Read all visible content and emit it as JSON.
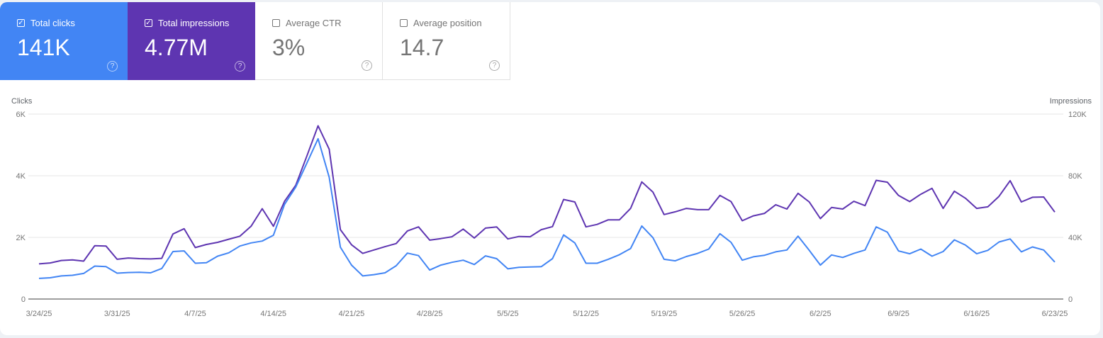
{
  "metrics": [
    {
      "label": "Total clicks",
      "value": "141K",
      "checked": true,
      "color": "#4285f4"
    },
    {
      "label": "Total impressions",
      "value": "4.77M",
      "checked": true,
      "color": "#5e35b1"
    },
    {
      "label": "Average CTR",
      "value": "3%",
      "checked": false
    },
    {
      "label": "Average position",
      "value": "14.7",
      "checked": false
    }
  ],
  "icons": {
    "checkbox": "checkbox-icon",
    "help": "help-circle-icon"
  },
  "chart_data": {
    "type": "line",
    "grid": true,
    "legend": "none",
    "left_axis": {
      "label": "Clicks",
      "range": [
        0,
        6000
      ],
      "ticks": [
        "0",
        "2K",
        "4K",
        "6K"
      ]
    },
    "right_axis": {
      "label": "Impressions",
      "range": [
        0,
        120000
      ],
      "ticks": [
        "0",
        "40K",
        "80K",
        "120K"
      ]
    },
    "x_ticks": [
      "3/24/25",
      "3/31/25",
      "4/7/25",
      "4/14/25",
      "4/21/25",
      "4/28/25",
      "5/5/25",
      "5/12/25",
      "5/19/25",
      "5/26/25",
      "6/2/25",
      "6/9/25",
      "6/16/25",
      "6/23/25"
    ],
    "dates": [
      "3/24/25",
      "3/25/25",
      "3/26/25",
      "3/27/25",
      "3/28/25",
      "3/29/25",
      "3/30/25",
      "3/31/25",
      "4/1/25",
      "4/2/25",
      "4/3/25",
      "4/4/25",
      "4/5/25",
      "4/6/25",
      "4/7/25",
      "4/8/25",
      "4/9/25",
      "4/10/25",
      "4/11/25",
      "4/12/25",
      "4/13/25",
      "4/14/25",
      "4/15/25",
      "4/16/25",
      "4/17/25",
      "4/18/25",
      "4/19/25",
      "4/20/25",
      "4/21/25",
      "4/22/25",
      "4/23/25",
      "4/24/25",
      "4/25/25",
      "4/26/25",
      "4/27/25",
      "4/28/25",
      "4/29/25",
      "4/30/25",
      "5/1/25",
      "5/2/25",
      "5/3/25",
      "5/4/25",
      "5/5/25",
      "5/6/25",
      "5/7/25",
      "5/8/25",
      "5/9/25",
      "5/10/25",
      "5/11/25",
      "5/12/25",
      "5/13/25",
      "5/14/25",
      "5/15/25",
      "5/16/25",
      "5/17/25",
      "5/18/25",
      "5/19/25",
      "5/20/25",
      "5/21/25",
      "5/22/25",
      "5/23/25",
      "5/24/25",
      "5/25/25",
      "5/26/25",
      "5/27/25",
      "5/28/25",
      "5/29/25",
      "5/30/25",
      "5/31/25",
      "6/1/25",
      "6/2/25",
      "6/3/25",
      "6/4/25",
      "6/5/25",
      "6/6/25",
      "6/7/25",
      "6/8/25",
      "6/9/25",
      "6/10/25",
      "6/11/25",
      "6/12/25",
      "6/13/25",
      "6/14/25",
      "6/15/25",
      "6/16/25",
      "6/17/25",
      "6/18/25",
      "6/19/25",
      "6/20/25",
      "6/21/25",
      "6/22/25",
      "6/23/25"
    ],
    "series": [
      {
        "name": "Clicks",
        "axis": "left",
        "color": "#4285f4",
        "values": [
          670,
          690,
          750,
          770,
          830,
          1070,
          1050,
          840,
          860,
          870,
          850,
          990,
          1540,
          1560,
          1160,
          1180,
          1390,
          1500,
          1720,
          1820,
          1880,
          2070,
          3070,
          3630,
          4410,
          5200,
          3950,
          1680,
          1100,
          750,
          790,
          850,
          1080,
          1490,
          1410,
          940,
          1100,
          1190,
          1260,
          1120,
          1400,
          1310,
          980,
          1030,
          1040,
          1050,
          1310,
          2080,
          1820,
          1160,
          1160,
          1290,
          1440,
          1640,
          2370,
          1990,
          1290,
          1240,
          1380,
          1480,
          1620,
          2120,
          1840,
          1260,
          1370,
          1420,
          1530,
          1590,
          2040,
          1580,
          1100,
          1430,
          1350,
          1480,
          1590,
          2340,
          2170,
          1560,
          1470,
          1620,
          1390,
          1540,
          1920,
          1750,
          1470,
          1580,
          1850,
          1950,
          1530,
          1690,
          1590,
          1200
        ]
      },
      {
        "name": "Impressions",
        "axis": "right",
        "color": "#5e35b1",
        "values": [
          22800,
          23400,
          25000,
          25400,
          24600,
          34600,
          34400,
          25800,
          26600,
          26200,
          26000,
          26400,
          42200,
          45600,
          33400,
          35400,
          36800,
          38800,
          40800,
          47200,
          58600,
          47200,
          63400,
          73800,
          92800,
          112400,
          97200,
          45000,
          35200,
          29600,
          31800,
          34000,
          36000,
          44200,
          46800,
          38200,
          39200,
          40400,
          45400,
          39600,
          46000,
          46800,
          39000,
          40600,
          40400,
          45000,
          47000,
          64600,
          63000,
          46800,
          48400,
          51400,
          51400,
          58800,
          76000,
          69400,
          54800,
          56600,
          58800,
          58000,
          58000,
          67200,
          63200,
          50800,
          54000,
          55600,
          61200,
          58400,
          68600,
          63000,
          52200,
          59400,
          58400,
          63400,
          60600,
          77000,
          75800,
          67200,
          63200,
          68000,
          71800,
          58800,
          70000,
          65400,
          58800,
          59800,
          66600,
          76800,
          63000,
          66000,
          66200,
          56400
        ]
      }
    ]
  }
}
